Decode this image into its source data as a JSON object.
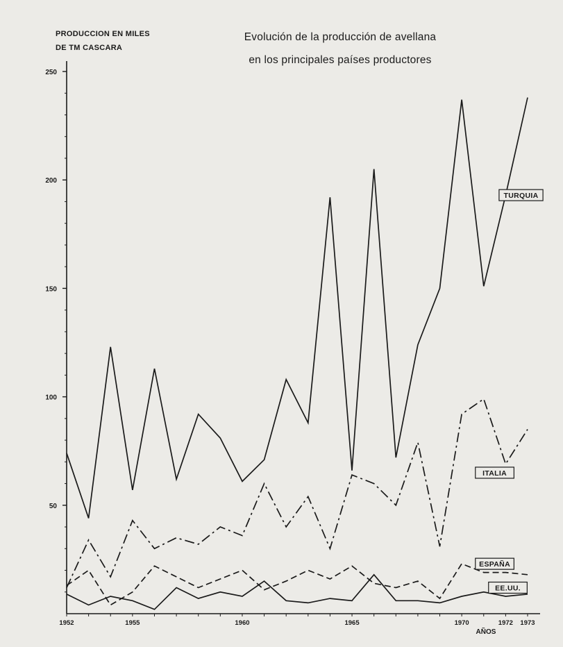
{
  "chart_data": {
    "type": "line",
    "title_lines": [
      "Evolución de la producción de avellana",
      "en los principales países productores"
    ],
    "ylabel_lines": [
      "PRODUCCION EN MILES",
      "DE TM        CASCARA"
    ],
    "xlabel": "AÑOS",
    "ylim": [
      0,
      250
    ],
    "xlim": [
      1952,
      1973
    ],
    "y_ticks": [
      50,
      100,
      150,
      200,
      250
    ],
    "x_ticks": [
      1952,
      1955,
      1960,
      1965,
      1970,
      1972,
      1973
    ],
    "x_tick_labels": [
      "1952",
      "1955",
      "1960",
      "1965",
      "1970",
      "1972",
      "1973"
    ],
    "grid": false,
    "x": [
      1952,
      1953,
      1954,
      1955,
      1956,
      1957,
      1958,
      1959,
      1960,
      1961,
      1962,
      1963,
      1964,
      1965,
      1966,
      1967,
      1968,
      1969,
      1970,
      1971,
      1972,
      1973
    ],
    "series": [
      {
        "name": "TURQUIA",
        "style": "solid",
        "color": "#1a1a1a",
        "values": [
          74,
          44,
          123,
          57,
          113,
          62,
          92,
          81,
          61,
          71,
          108,
          88,
          192,
          66,
          205,
          72,
          124,
          150,
          237,
          151,
          193,
          238
        ]
      },
      {
        "name": "ITALIA",
        "style": "dashdot",
        "color": "#1a1a1a",
        "values": [
          12,
          34,
          17,
          43,
          30,
          35,
          32,
          40,
          36,
          60,
          40,
          54,
          30,
          64,
          60,
          50,
          79,
          31,
          92,
          99,
          69,
          85
        ]
      },
      {
        "name": "ESPAÑA",
        "style": "dashed",
        "color": "#1a1a1a",
        "values": [
          13,
          20,
          4,
          10,
          22,
          17,
          12,
          16,
          20,
          11,
          15,
          20,
          16,
          22,
          14,
          12,
          15,
          7,
          23,
          19,
          19,
          18
        ]
      },
      {
        "name": "EE.UU.",
        "style": "solid",
        "color": "#1a1a1a",
        "values": [
          9,
          4,
          8,
          6,
          2,
          12,
          7,
          10,
          8,
          15,
          6,
          5,
          7,
          6,
          18,
          6,
          6,
          5,
          8,
          10,
          8,
          9
        ]
      }
    ],
    "series_labels": [
      {
        "series": "TURQUIA",
        "x": 1972.7,
        "y": 193
      },
      {
        "series": "ITALIA",
        "x": 1971.5,
        "y": 65
      },
      {
        "series": "ESPAÑA",
        "x": 1971.5,
        "y": 23
      },
      {
        "series": "EE.UU.",
        "x": 1972.1,
        "y": 12
      }
    ]
  }
}
